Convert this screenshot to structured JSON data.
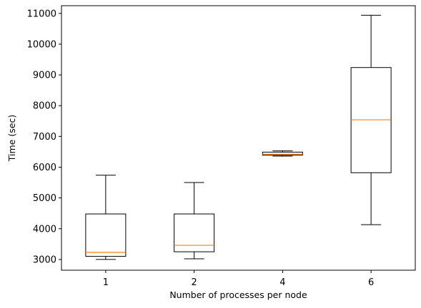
{
  "chart_data": {
    "type": "box",
    "title": "",
    "xlabel": "Number of processes per node",
    "ylabel": "Time (sec)",
    "ylim": [
      2650,
      11250
    ],
    "yticks": [
      3000,
      4000,
      5000,
      6000,
      7000,
      8000,
      9000,
      10000,
      11000
    ],
    "categories": [
      "1",
      "2",
      "4",
      "6"
    ],
    "boxes": [
      {
        "category": "1",
        "whisker_low": 3000,
        "q1": 3100,
        "median": 3230,
        "q3": 4480,
        "whisker_high": 5740
      },
      {
        "category": "2",
        "whisker_low": 3020,
        "q1": 3250,
        "median": 3460,
        "q3": 4480,
        "whisker_high": 5500
      },
      {
        "category": "4",
        "whisker_low": 6360,
        "q1": 6390,
        "median": 6420,
        "q3": 6490,
        "whisker_high": 6530
      },
      {
        "category": "6",
        "whisker_low": 4130,
        "q1": 5820,
        "median": 7540,
        "q3": 9240,
        "whisker_high": 10940
      }
    ],
    "grid": false,
    "colors": {
      "box": "#000000",
      "median": "#ff7f0e",
      "background": "#ffffff"
    }
  }
}
